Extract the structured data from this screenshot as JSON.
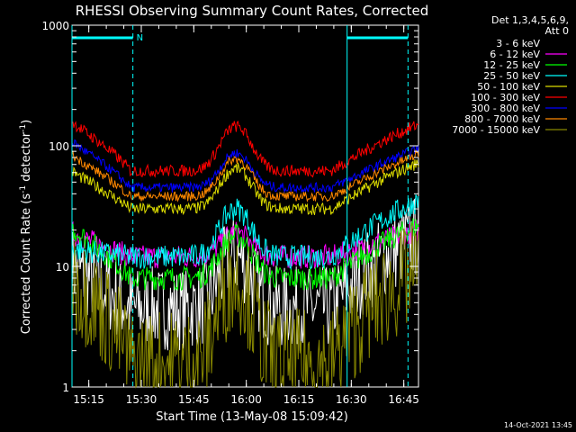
{
  "chart_data": {
    "type": "line",
    "title": "RHESSI Observing Summary Count Rates, Corrected",
    "xlabel": "Start Time (13-May-08 15:09:42)",
    "ylabel_main": "Corrected Count Rate (s",
    "ylabel_sup1": "-1",
    "ylabel_mid": " detector",
    "ylabel_sup2": "-1",
    "ylabel_end": ")",
    "footer_date": "14-Oct-2021 13:45",
    "y_scale": "log",
    "ylim": [
      1,
      1000
    ],
    "xlim_minutes": [
      15.17,
      16.82
    ],
    "x_ticks": [
      {
        "t": "15:15",
        "v": 15.25
      },
      {
        "t": "15:30",
        "v": 15.5
      },
      {
        "t": "15:45",
        "v": 15.75
      },
      {
        "t": "16:00",
        "v": 16.0
      },
      {
        "t": "16:15",
        "v": 16.25
      },
      {
        "t": "16:30",
        "v": 16.5
      },
      {
        "t": "16:45",
        "v": 16.75
      }
    ],
    "y_ticks": [
      {
        "t": "1",
        "v": 1
      },
      {
        "t": "10",
        "v": 10
      },
      {
        "t": "100",
        "v": 100
      },
      {
        "t": "1000",
        "v": 1000
      }
    ],
    "legend_header": [
      "Det 1,3,4,5,6,9,",
      "Att 0"
    ],
    "legend_position": "right",
    "night_marker": "N",
    "annotations": {
      "night_bars": [
        [
          15.17,
          15.46
        ],
        [
          16.48,
          16.77
        ]
      ],
      "dashed_lines_hours": [
        15.46,
        16.77
      ],
      "solid_lines_hours": [
        15.17,
        16.48
      ]
    },
    "series": [
      {
        "name": "3 - 6 keV",
        "color": "#ffffff",
        "legend_color": "#000000",
        "base": 4.5,
        "peak": 12,
        "start": 10,
        "end": 18,
        "noise": 0.35
      },
      {
        "name": "6 - 12 keV",
        "color": "#ff00ff",
        "base": 12,
        "peak": 19,
        "start": 19,
        "end": 20,
        "noise": 0.1
      },
      {
        "name": "12 - 25 keV",
        "color": "#00ff00",
        "base": 8,
        "peak": 18,
        "start": 21,
        "end": 22,
        "noise": 0.1
      },
      {
        "name": "25 - 50 keV",
        "color": "#00ffff",
        "base": 12,
        "peak": 30,
        "start": 14,
        "end": 35,
        "noise": 0.1
      },
      {
        "name": "50 - 100 keV",
        "color": "#dddd00",
        "base": 30,
        "peak": 65,
        "start": 62,
        "end": 72,
        "noise": 0.05
      },
      {
        "name": "100 - 300 keV",
        "color": "#ff0000",
        "base": 62,
        "peak": 145,
        "start": 160,
        "end": 150,
        "noise": 0.05
      },
      {
        "name": "300 - 800 keV",
        "color": "#0000ff",
        "base": 45,
        "peak": 87,
        "start": 110,
        "end": 95,
        "noise": 0.04
      },
      {
        "name": "800 - 7000 keV",
        "color": "#ff8800",
        "base": 38,
        "peak": 78,
        "start": 85,
        "end": 85,
        "noise": 0.04
      },
      {
        "name": "7000 - 15000 keV",
        "color": "#888800",
        "base": 1.6,
        "peak": 8,
        "start": 8,
        "end": 9,
        "noise": 0.45
      }
    ]
  }
}
